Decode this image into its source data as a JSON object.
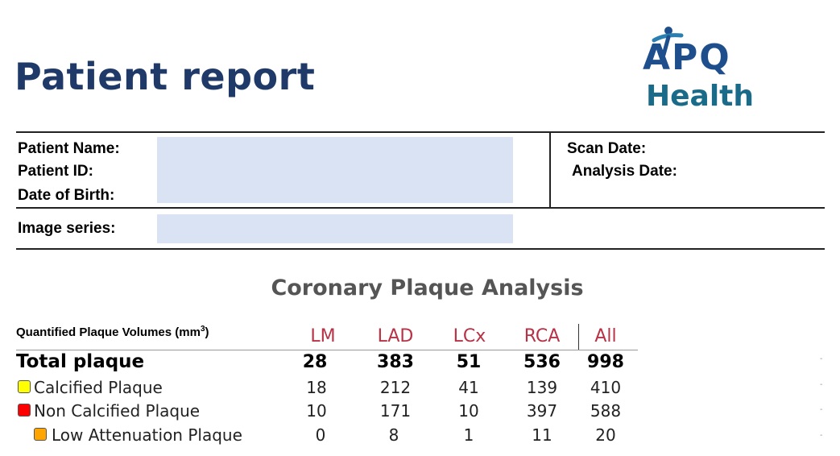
{
  "header": {
    "title": "Patient report",
    "logo": {
      "line1": "APQ",
      "line2": "Health",
      "color_primary": "#1e4f8c",
      "color_secondary": "#1a6b8a"
    }
  },
  "patient_info": {
    "name_label": "Patient Name:",
    "id_label": "Patient ID:",
    "dob_label": "Date of Birth:",
    "scan_date_label": "Scan Date:",
    "analysis_date_label": "Analysis Date:",
    "image_series_label": "Image series:",
    "redaction_color": "#dae3f3"
  },
  "analysis": {
    "title": "Coronary Plaque Analysis",
    "table_caption": "Quantified Plaque Volumes (mm",
    "table_caption_sup": "3",
    "table_caption_end": ")",
    "columns": [
      "LM",
      "LAD",
      "LCx",
      "RCA",
      "All"
    ],
    "column_color": "#b83246",
    "rows": [
      {
        "label": "Total plaque",
        "values": [
          "28",
          "383",
          "51",
          "536",
          "998"
        ],
        "swatch": null
      },
      {
        "label": "Calcified Plaque",
        "values": [
          "18",
          "212",
          "41",
          "139",
          "410"
        ],
        "swatch": "#ffff00"
      },
      {
        "label": "Non Calcified Plaque",
        "values": [
          "10",
          "171",
          "10",
          "397",
          "588"
        ],
        "swatch": "#ff0000"
      },
      {
        "label": "Low Attenuation Plaque",
        "values": [
          "0",
          "8",
          "1",
          "11",
          "20"
        ],
        "swatch": "#ffa500"
      }
    ],
    "edge_marks": [
      "-",
      "-",
      "-",
      "-"
    ]
  }
}
